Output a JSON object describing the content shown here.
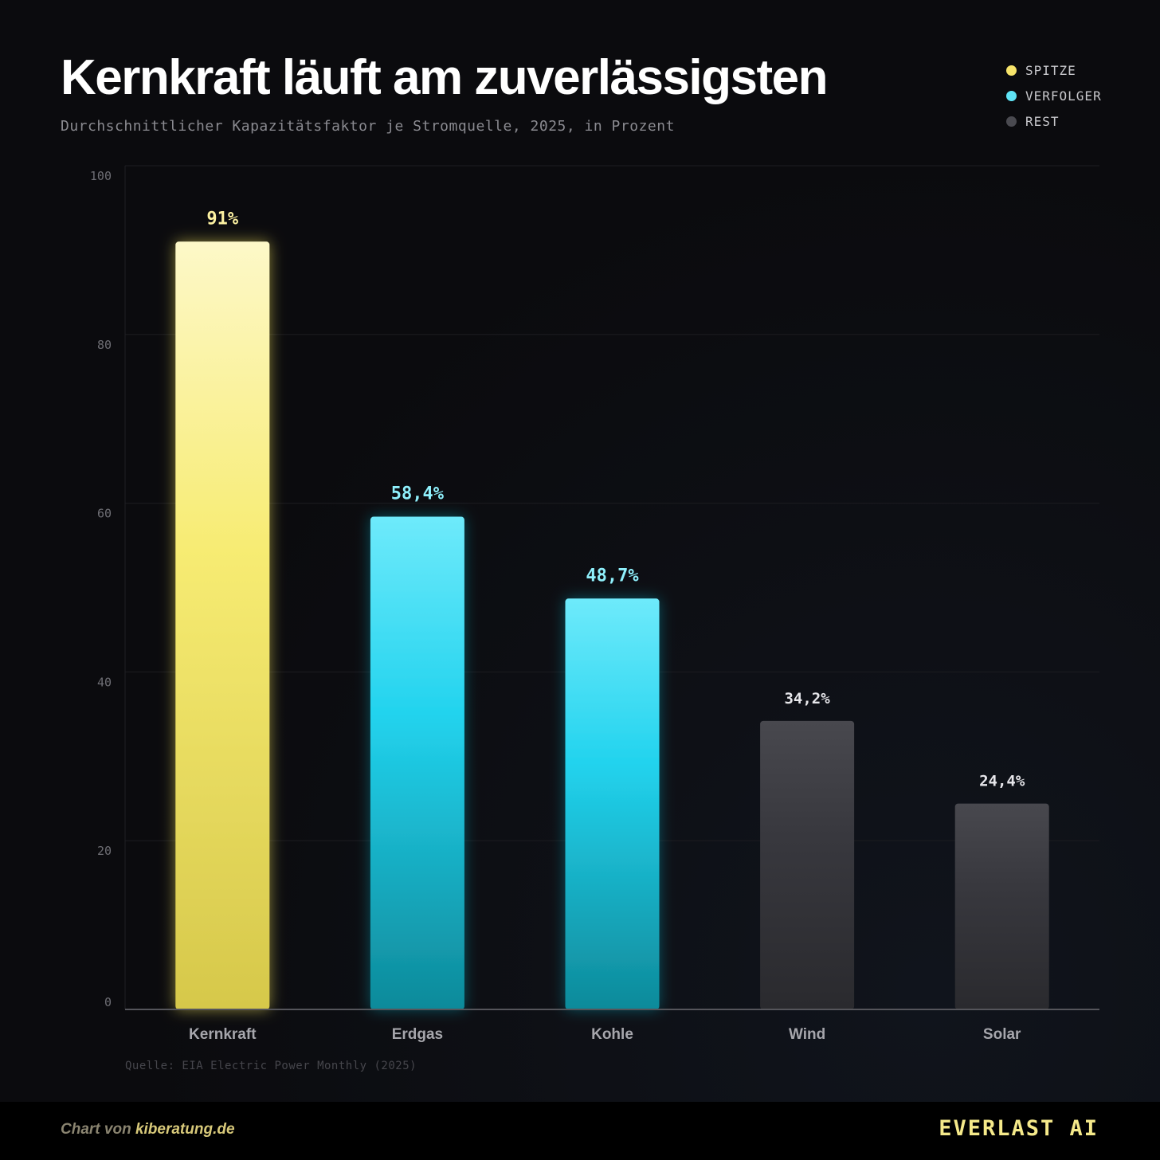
{
  "title": "Kernkraft läuft am zuverlässigsten",
  "subtitle": "Durchschnittlicher Kapazitätsfaktor je Stromquelle, 2025, in Prozent",
  "legend": [
    {
      "label": "SPITZE",
      "color": "#f7e46a"
    },
    {
      "label": "VERFOLGER",
      "color": "#5fe3f5"
    },
    {
      "label": "REST",
      "color": "#4a4a50"
    }
  ],
  "source": "Quelle: EIA Electric Power Monthly (2025)",
  "footer": {
    "credit_prefix": "Chart von ",
    "credit_link": "kiberatung.de",
    "brand": "EVERLAST AI"
  },
  "chart_data": {
    "type": "bar",
    "categories": [
      "Kernkraft",
      "Erdgas",
      "Kohle",
      "Wind",
      "Solar"
    ],
    "values": [
      91,
      58.4,
      48.7,
      34.2,
      24.4
    ],
    "value_labels": [
      "91%",
      "58,4%",
      "48,7%",
      "34,2%",
      "24,4%"
    ],
    "groups": [
      "SPITZE",
      "VERFOLGER",
      "VERFOLGER",
      "REST",
      "REST"
    ],
    "ylim": [
      0,
      100
    ],
    "yticks": [
      0,
      20,
      40,
      60,
      80,
      100
    ],
    "grid": true,
    "legend_position": "top-right"
  }
}
